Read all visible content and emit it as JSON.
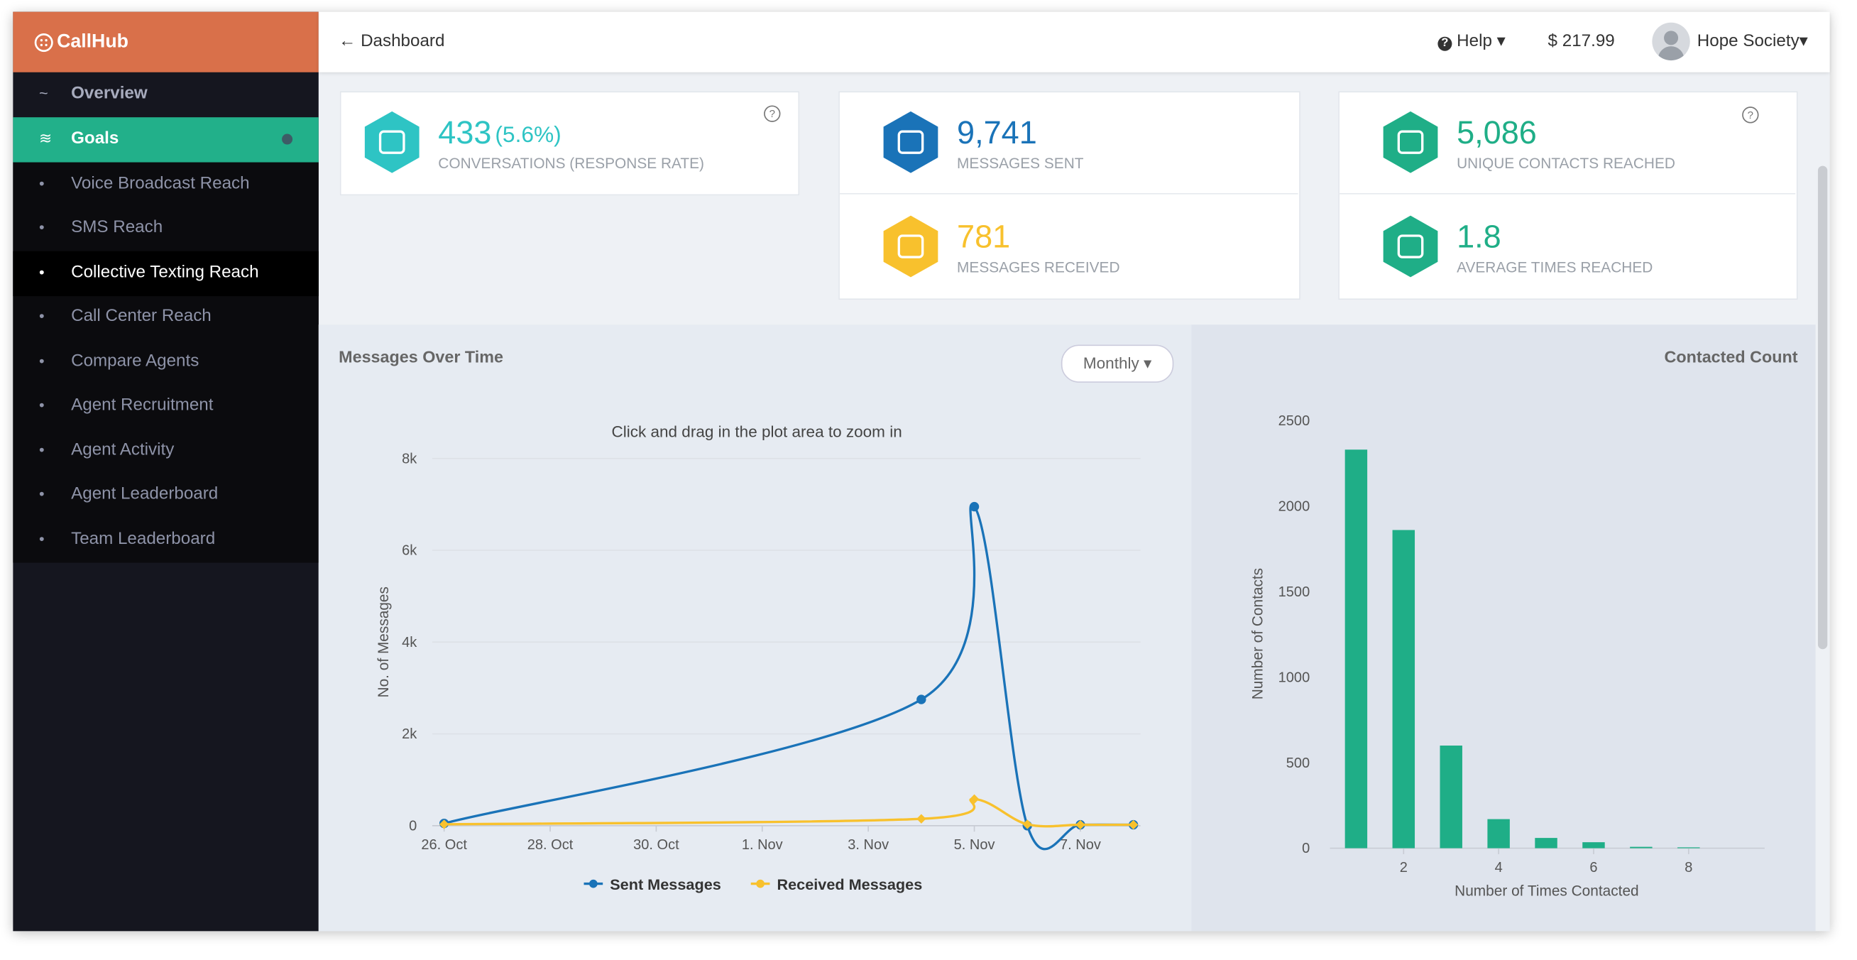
{
  "header": {
    "logo": "CallHub",
    "back": "Dashboard",
    "help": "Help",
    "balance": "$ 217.99",
    "user": "Hope Society"
  },
  "sidebar": {
    "items": [
      "Overview",
      "Goals",
      "Voice Broadcast Reach",
      "SMS Reach",
      "Collective Texting Reach",
      "Call Center Reach",
      "Compare Agents",
      "Agent Recruitment",
      "Agent Activity",
      "Agent Leaderboard",
      "Team Leaderboard"
    ]
  },
  "stats": [
    {
      "value": "433",
      "extra": "(5.6%)",
      "label": "CONVERSATIONS (RESPONSE RATE)"
    },
    {
      "value": "9,741",
      "label": "MESSAGES SENT"
    },
    {
      "value": "5,086",
      "label": "UNIQUE CONTACTS REACHED"
    },
    {
      "value": "781",
      "label": "MESSAGES RECEIVED"
    },
    {
      "value": "1.8",
      "label": "AVERAGE TIMES REACHED"
    }
  ],
  "messages_chart": {
    "type": "line",
    "title": "Messages Over Time",
    "period": "Monthly",
    "subtitle": "Click and drag in the plot area to zoom in",
    "ylabel": "No. of Messages",
    "x": [
      "26. Oct",
      "4. Nov",
      "5. Nov",
      "6. Nov",
      "7. Nov",
      "8. Nov"
    ],
    "xlim": [
      "26. Oct",
      "8. Nov"
    ],
    "xticks": [
      "26. Oct",
      "28. Oct",
      "30. Oct",
      "1. Nov",
      "3. Nov",
      "5. Nov",
      "7. Nov"
    ],
    "ylim": [
      0,
      8000
    ],
    "yticks": [
      0,
      {
        "value": 2000,
        "label": "2k"
      },
      {
        "value": 4000,
        "label": "4k"
      },
      {
        "value": 6000,
        "label": "6k"
      },
      {
        "value": 8000,
        "label": "8k"
      }
    ],
    "grid": true,
    "series": [
      {
        "name": "Sent Messages",
        "color": "#1a73b8",
        "values": [
          50,
          2750,
          6950,
          0,
          20,
          20
        ]
      },
      {
        "name": "Received Messages",
        "color": "#f8c12d",
        "values": [
          30,
          150,
          580,
          30,
          20,
          20
        ]
      }
    ]
  },
  "contacted_chart": {
    "type": "bar",
    "title": "Contacted Count",
    "ylabel": "Number of Contacts",
    "xlabel": "Number of Times Contacted",
    "x": [
      1,
      2,
      3,
      4,
      5,
      6,
      7,
      8
    ],
    "values": [
      2330,
      1860,
      600,
      170,
      60,
      35,
      8,
      5
    ],
    "color": "#1fae87",
    "xlim": [
      0.45,
      9.6
    ],
    "xticks": [
      2,
      4,
      6,
      8
    ],
    "ylim": [
      0,
      2500
    ],
    "yticks": [
      0,
      500,
      1000,
      1500,
      2000,
      2500
    ]
  }
}
